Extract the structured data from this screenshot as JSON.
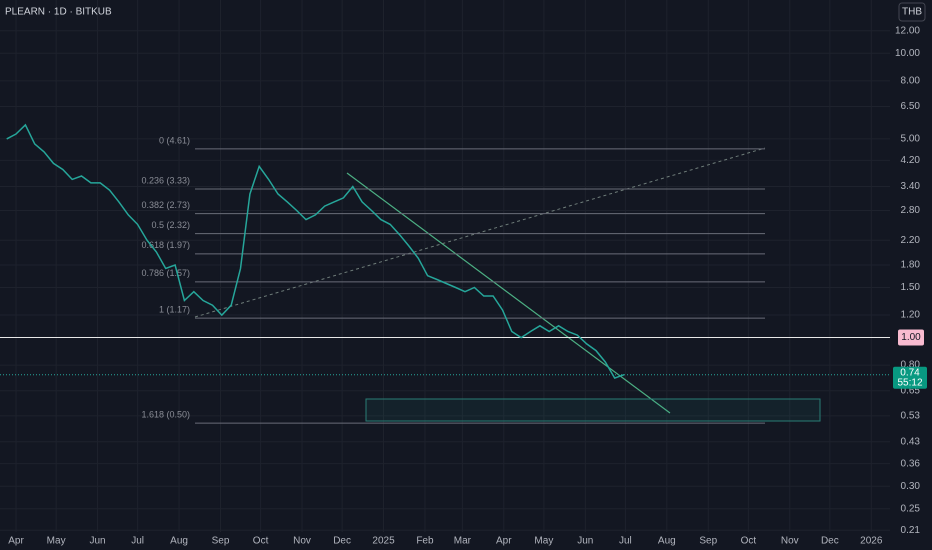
{
  "chart_data": {
    "type": "line",
    "title": "PLEARN · 1D · BITKUB",
    "currency": "THB",
    "log_scale": true,
    "grid": true,
    "x": [
      "2024-03-25",
      "2024-04-01",
      "2024-04-08",
      "2024-04-15",
      "2024-04-22",
      "2024-04-29",
      "2024-05-06",
      "2024-05-13",
      "2024-05-20",
      "2024-05-27",
      "2024-06-03",
      "2024-06-10",
      "2024-06-17",
      "2024-06-24",
      "2024-07-01",
      "2024-07-08",
      "2024-07-15",
      "2024-07-22",
      "2024-07-29",
      "2024-08-05",
      "2024-08-12",
      "2024-08-19",
      "2024-08-26",
      "2024-09-02",
      "2024-09-09",
      "2024-09-16",
      "2024-09-23",
      "2024-09-30",
      "2024-10-07",
      "2024-10-14",
      "2024-10-21",
      "2024-10-28",
      "2024-11-04",
      "2024-11-11",
      "2024-11-18",
      "2024-11-25",
      "2024-12-02",
      "2024-12-09",
      "2024-12-16",
      "2024-12-23",
      "2024-12-30",
      "2025-01-06",
      "2025-01-13",
      "2025-01-20",
      "2025-01-27",
      "2025-02-03",
      "2025-02-10",
      "2025-02-17",
      "2025-02-24",
      "2025-03-03",
      "2025-03-10",
      "2025-03-17",
      "2025-03-24",
      "2025-03-31",
      "2025-04-07",
      "2025-04-14",
      "2025-04-21",
      "2025-04-28",
      "2025-05-05",
      "2025-05-12",
      "2025-05-19",
      "2025-05-26",
      "2025-06-02",
      "2025-06-09",
      "2025-06-16",
      "2025-06-23",
      "2025-06-30"
    ],
    "series": [
      {
        "name": "PLEARN",
        "color": "#26a69a",
        "values": [
          5.0,
          5.2,
          5.6,
          4.8,
          4.5,
          4.1,
          3.9,
          3.6,
          3.7,
          3.5,
          3.5,
          3.3,
          3.0,
          2.7,
          2.5,
          2.2,
          2.0,
          1.75,
          1.8,
          1.35,
          1.45,
          1.35,
          1.3,
          1.2,
          1.3,
          1.75,
          3.2,
          4.0,
          3.6,
          3.2,
          3.0,
          2.8,
          2.6,
          2.7,
          2.9,
          3.0,
          3.1,
          3.4,
          3.0,
          2.8,
          2.6,
          2.5,
          2.3,
          2.1,
          1.9,
          1.65,
          1.6,
          1.55,
          1.5,
          1.45,
          1.5,
          1.4,
          1.4,
          1.25,
          1.05,
          1.0,
          1.05,
          1.1,
          1.05,
          1.1,
          1.05,
          1.02,
          0.95,
          0.9,
          0.82,
          0.72,
          0.74
        ]
      }
    ],
    "xlim": [
      "2024-03-20",
      "2026-01-15"
    ],
    "xticks": [
      {
        "value": "2024-04-01",
        "label": "Apr"
      },
      {
        "value": "2024-05-01",
        "label": "May"
      },
      {
        "value": "2024-06-01",
        "label": "Jun"
      },
      {
        "value": "2024-07-01",
        "label": "Jul"
      },
      {
        "value": "2024-08-01",
        "label": "Aug"
      },
      {
        "value": "2024-09-01",
        "label": "Sep"
      },
      {
        "value": "2024-10-01",
        "label": "Oct"
      },
      {
        "value": "2024-11-01",
        "label": "Nov"
      },
      {
        "value": "2024-12-01",
        "label": "Dec"
      },
      {
        "value": "2025-01-01",
        "label": "2025"
      },
      {
        "value": "2025-02-01",
        "label": "Feb"
      },
      {
        "value": "2025-03-01",
        "label": "Mar"
      },
      {
        "value": "2025-04-01",
        "label": "Apr"
      },
      {
        "value": "2025-05-01",
        "label": "May"
      },
      {
        "value": "2025-06-01",
        "label": "Jun"
      },
      {
        "value": "2025-07-01",
        "label": "Jul"
      },
      {
        "value": "2025-08-01",
        "label": "Aug"
      },
      {
        "value": "2025-09-01",
        "label": "Sep"
      },
      {
        "value": "2025-10-01",
        "label": "Oct"
      },
      {
        "value": "2025-11-01",
        "label": "Nov"
      },
      {
        "value": "2025-12-01",
        "label": "Dec"
      },
      {
        "value": "2026-01-01",
        "label": "2026"
      }
    ],
    "ylim": [
      0.207,
      15.4
    ],
    "yticks": [
      {
        "value": 12,
        "label": "12.00"
      },
      {
        "value": 10,
        "label": "10.00"
      },
      {
        "value": 8,
        "label": "8.00"
      },
      {
        "value": 6.5,
        "label": "6.50"
      },
      {
        "value": 5,
        "label": "5.00"
      },
      {
        "value": 4.2,
        "label": "4.20"
      },
      {
        "value": 3.4,
        "label": "3.40"
      },
      {
        "value": 2.8,
        "label": "2.80"
      },
      {
        "value": 2.2,
        "label": "2.20"
      },
      {
        "value": 1.8,
        "label": "1.80"
      },
      {
        "value": 1.5,
        "label": "1.50"
      },
      {
        "value": 1.2,
        "label": "1.20"
      },
      {
        "value": 0.8,
        "label": "0.80"
      },
      {
        "value": 0.65,
        "label": "0.65"
      },
      {
        "value": 0.53,
        "label": "0.53"
      },
      {
        "value": 0.43,
        "label": "0.43"
      },
      {
        "value": 0.36,
        "label": "0.36"
      },
      {
        "value": 0.3,
        "label": "0.30"
      },
      {
        "value": 0.25,
        "label": "0.25"
      },
      {
        "value": 0.21,
        "label": "0.21"
      }
    ],
    "hline": {
      "value": 1,
      "label": "1.00"
    },
    "last_price": {
      "value": 0.74,
      "label": "0.74",
      "countdown": "55:12"
    },
    "fib_levels": [
      {
        "value": 4.61,
        "label": "0 (4.61)"
      },
      {
        "value": 3.33,
        "label": "0.236 (3.33)"
      },
      {
        "value": 2.73,
        "label": "0.382 (2.73)"
      },
      {
        "value": 2.32,
        "label": "0.5 (2.32)"
      },
      {
        "value": 1.97,
        "label": "0.618 (1.97)"
      },
      {
        "value": 1.57,
        "label": "0.786 (1.57)"
      },
      {
        "value": 1.17,
        "label": "1 (1.17)"
      },
      {
        "value": 0.5,
        "label": "1.618 (0.50)"
      }
    ]
  }
}
